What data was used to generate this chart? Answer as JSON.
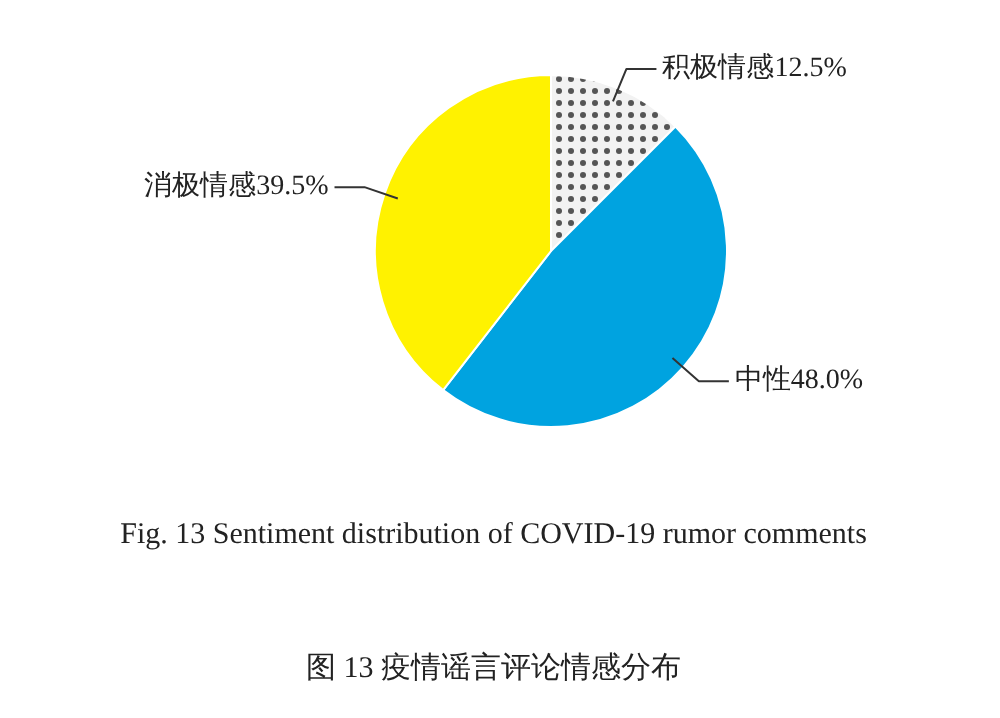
{
  "chart_data": {
    "type": "pie",
    "categories": [
      "积极情感",
      "中性",
      "消极情感"
    ],
    "values": [
      12.5,
      48.0,
      39.5
    ],
    "value_labels": [
      "12.5%",
      "48.0%",
      "39.5%"
    ],
    "colors": [
      "#f2f2f2",
      "#00a3e0",
      "#fff200"
    ],
    "annotations": [
      "Fig. 13   Sentiment distribution of COVID-19 rumor comments",
      "图 13   疫情谣言评论情感分布"
    ]
  }
}
